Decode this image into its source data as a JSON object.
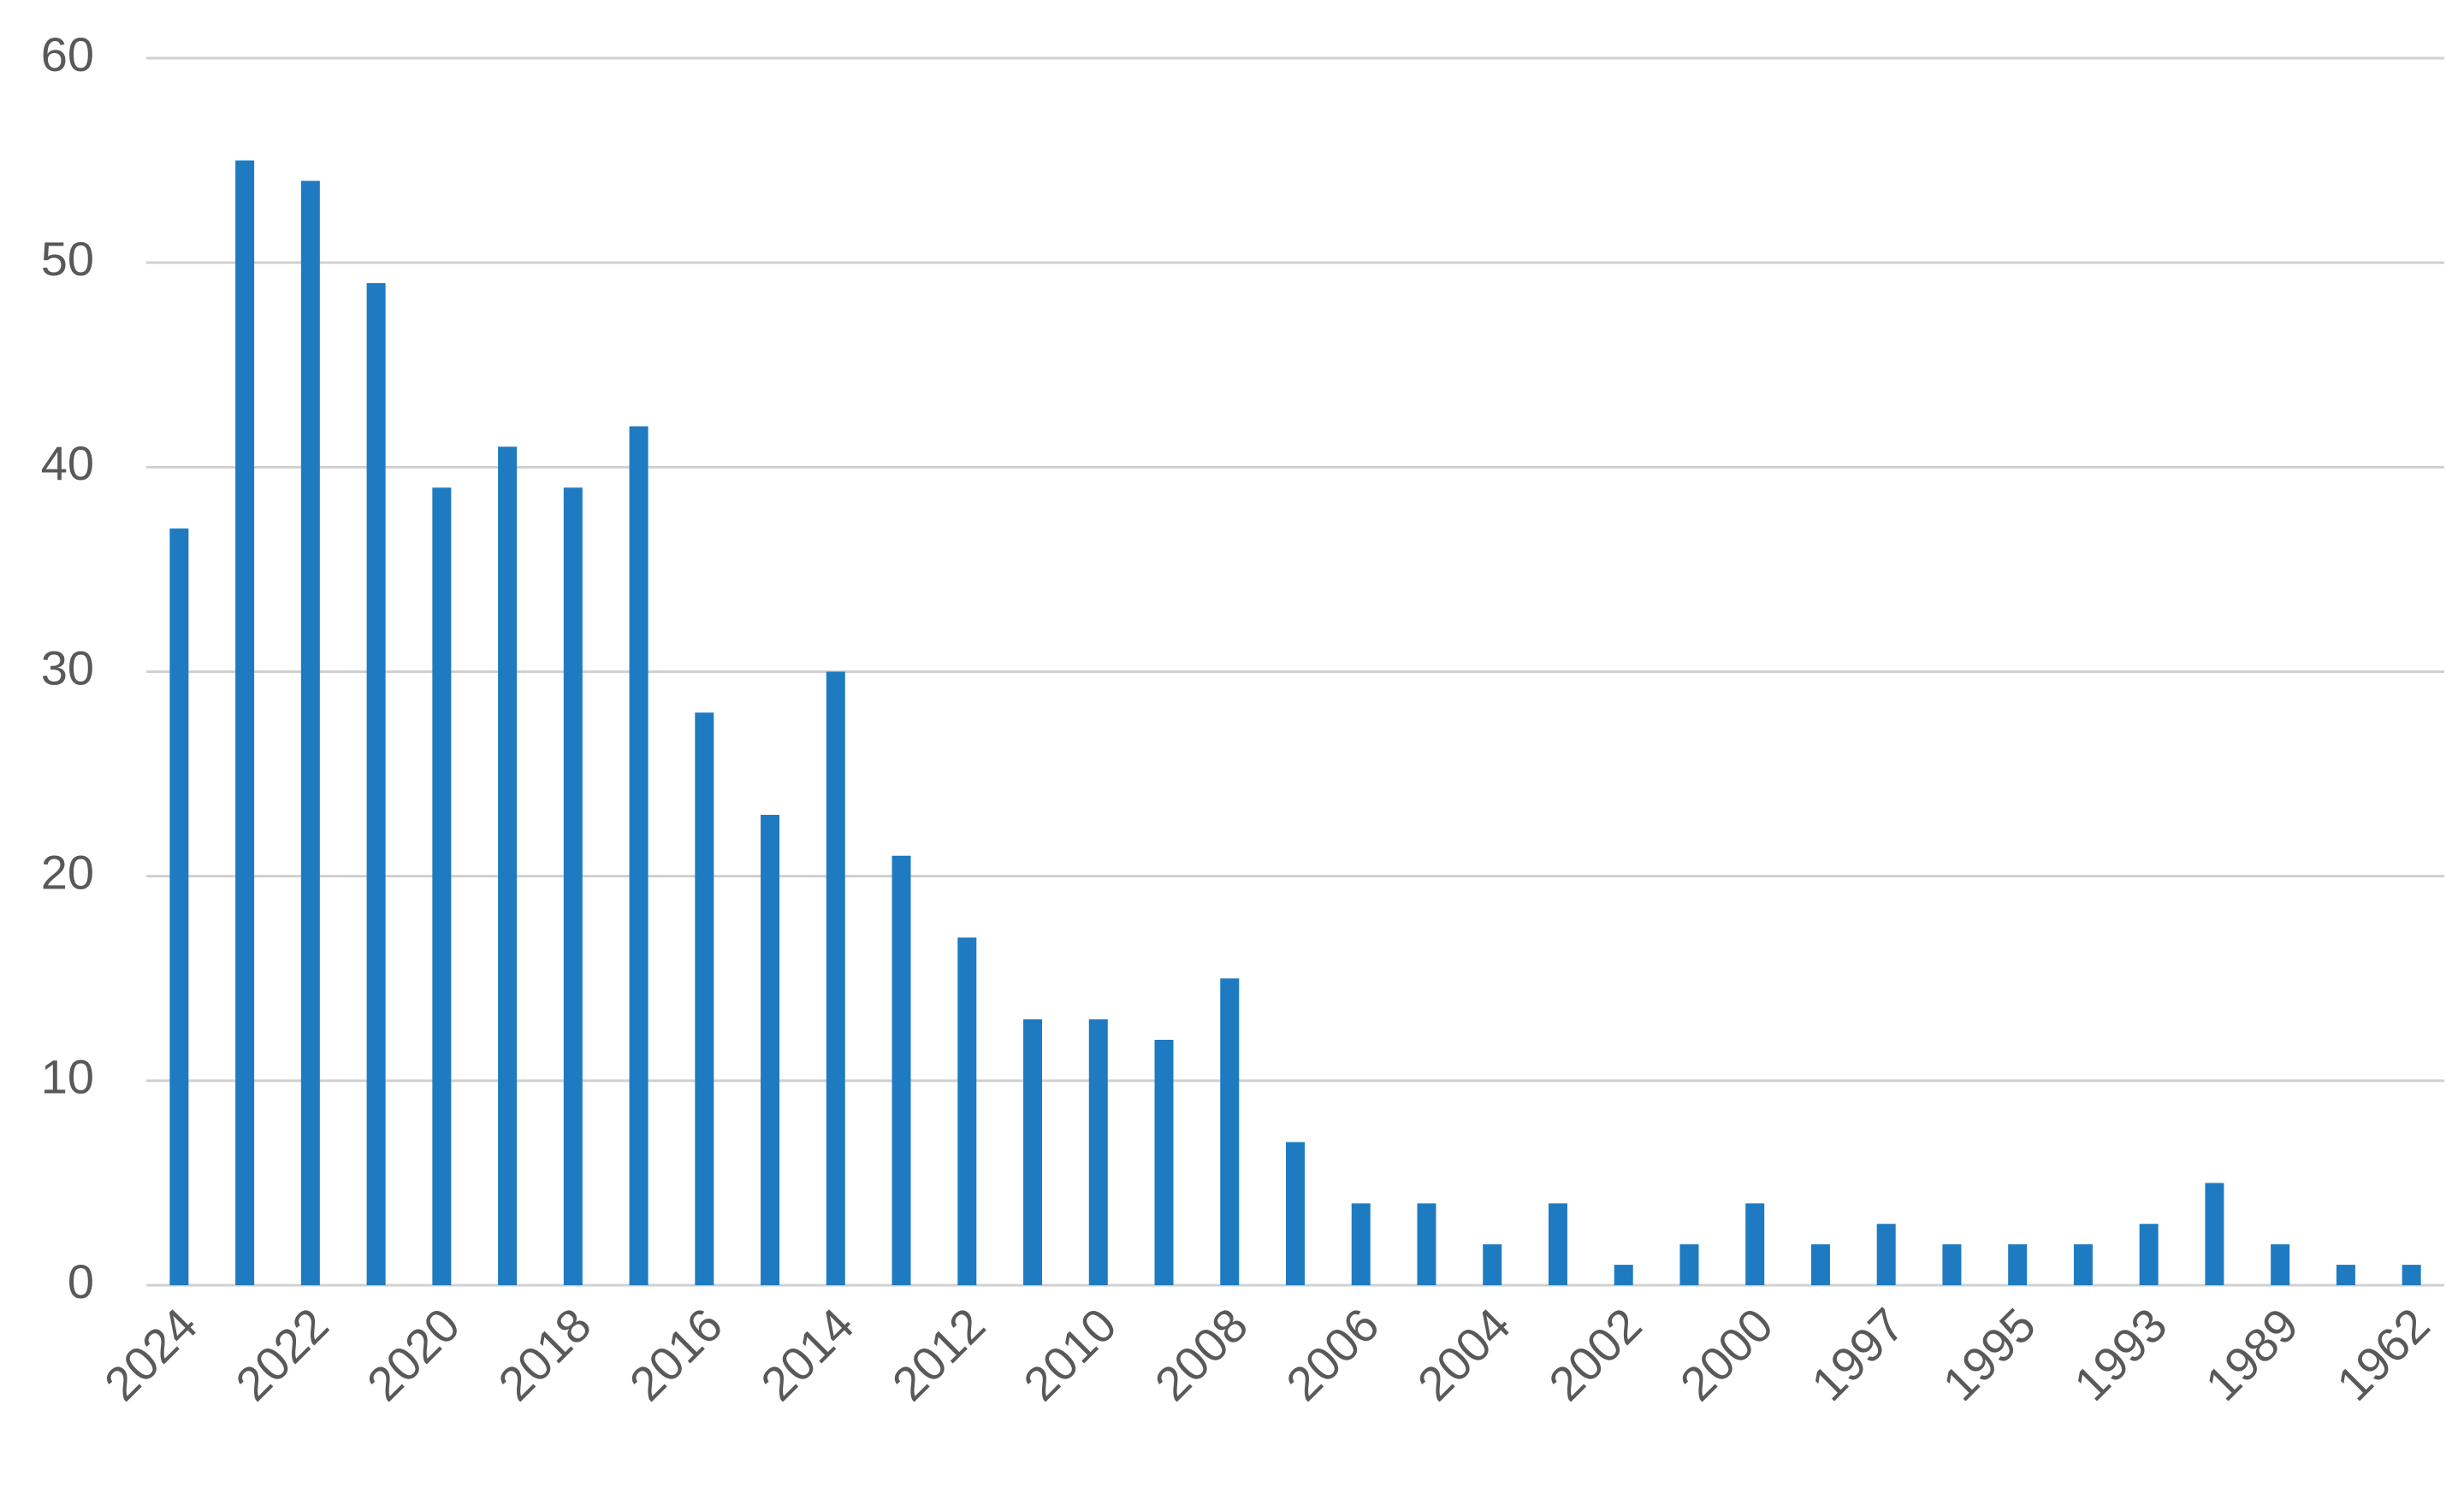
{
  "chart_data": {
    "type": "bar",
    "categories": [
      "2024",
      null,
      "2022",
      null,
      "2020",
      null,
      "2018",
      null,
      "2016",
      null,
      "2014",
      null,
      "2012",
      null,
      "2010",
      null,
      "2008",
      null,
      "2006",
      null,
      "2004",
      null,
      "2002",
      null,
      "2000",
      null,
      "1997",
      null,
      "1995",
      null,
      "1993",
      null,
      "1989",
      null,
      "1962"
    ],
    "values": [
      37,
      55,
      54,
      49,
      39,
      41,
      39,
      42,
      28,
      23,
      30,
      21,
      17,
      13,
      13,
      12,
      15,
      7,
      4,
      4,
      2,
      4,
      1,
      2,
      4,
      2,
      3,
      2,
      2,
      2,
      3,
      5,
      2,
      1,
      1
    ],
    "color": "#1f7bc1",
    "ylim": [
      0,
      60
    ],
    "yticks": [
      0,
      10,
      20,
      30,
      40,
      50,
      60
    ],
    "grid": true
  }
}
